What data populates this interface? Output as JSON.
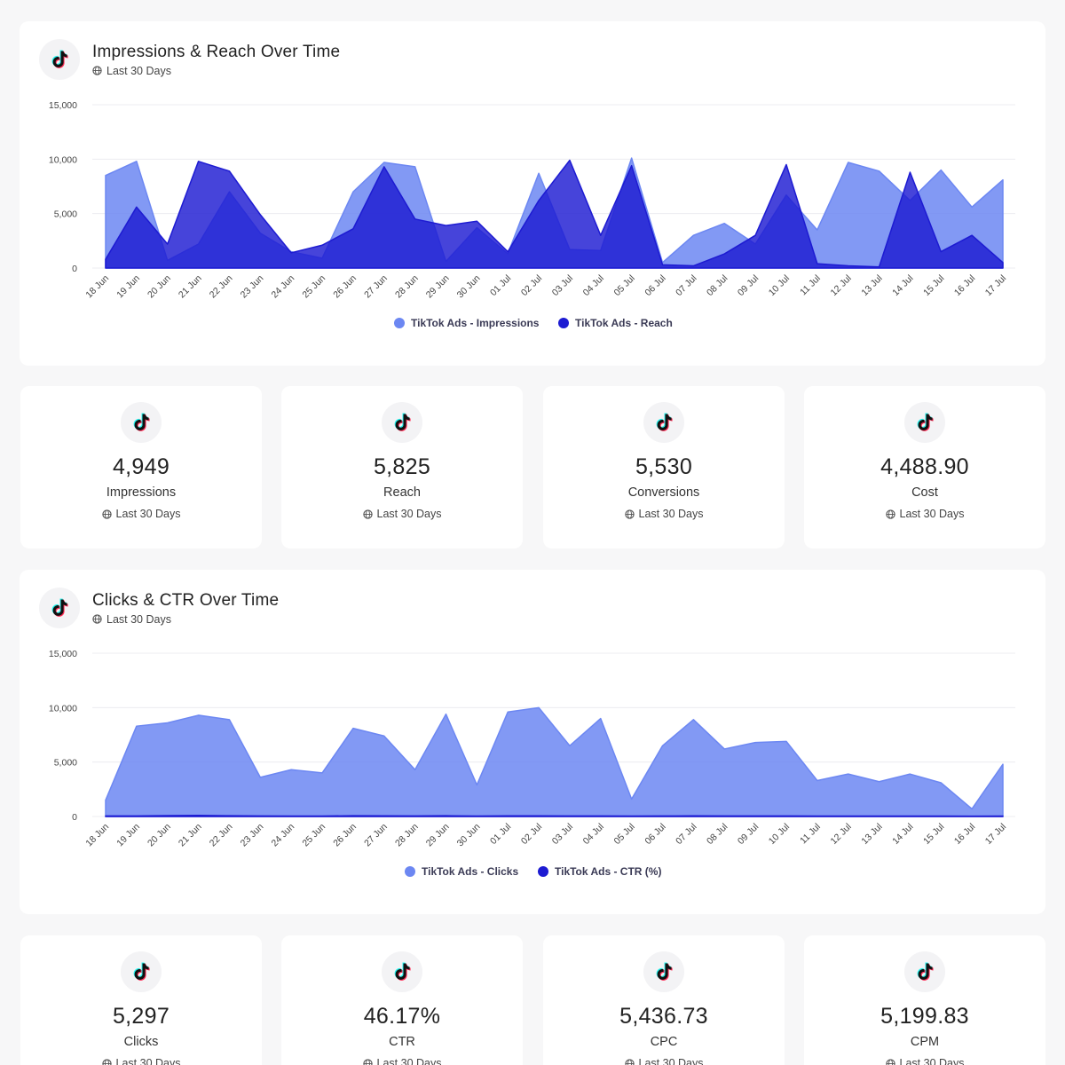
{
  "date_range": "Last 30 Days",
  "colors": {
    "series1": "#6c87f2",
    "series2": "#1d1bd2",
    "grid": "#ececf0"
  },
  "icons": {
    "logo": "tiktok-logo-icon",
    "globe": "globe-icon"
  },
  "charts": [
    {
      "title": "Impressions & Reach Over Time",
      "subtitle": "Last 30 Days",
      "chart_data": {
        "type": "area",
        "title": "Impressions & Reach Over Time",
        "x": [
          "18 Jun",
          "19 Jun",
          "20 Jun",
          "21 Jun",
          "22 Jun",
          "23 Jun",
          "24 Jun",
          "25 Jun",
          "26 Jun",
          "27 Jun",
          "28 Jun",
          "29 Jun",
          "30 Jun",
          "01 Jul",
          "02 Jul",
          "03 Jul",
          "04 Jul",
          "05 Jul",
          "06 Jul",
          "07 Jul",
          "08 Jul",
          "09 Jul",
          "10 Jul",
          "11 Jul",
          "12 Jul",
          "13 Jul",
          "14 Jul",
          "15 Jul",
          "16 Jul",
          "17 Jul"
        ],
        "yticks": [
          0,
          5000,
          10000,
          15000
        ],
        "ytick_labels": [
          "0",
          "5,000",
          "10,000",
          "15,000"
        ],
        "ylim": [
          0,
          15000
        ],
        "grid": true,
        "legend_position": "bottom",
        "series": [
          {
            "name": "TikTok Ads - Impressions",
            "values": [
              8500,
              9800,
              700,
              2200,
              7000,
              3200,
              1500,
              900,
              7000,
              9700,
              9300,
              600,
              3700,
              1300,
              8700,
              1700,
              1600,
              10100,
              500,
              3000,
              4100,
              2200,
              6700,
              3500,
              9700,
              8900,
              6200,
              9000,
              5600,
              8100
            ]
          },
          {
            "name": "TikTok Ads - Reach",
            "values": [
              800,
              5600,
              2200,
              9800,
              8900,
              4900,
              1400,
              2100,
              3600,
              9300,
              4500,
              3900,
              4300,
              1500,
              6200,
              9900,
              3000,
              9400,
              300,
              200,
              1300,
              3000,
              9500,
              400,
              200,
              100,
              8800,
              1500,
              3000,
              500
            ]
          }
        ]
      }
    },
    {
      "title": "Clicks & CTR Over Time",
      "subtitle": "Last 30 Days",
      "chart_data": {
        "type": "area",
        "title": "Clicks & CTR Over Time",
        "x": [
          "18 Jun",
          "19 Jun",
          "20 Jun",
          "21 Jun",
          "22 Jun",
          "23 Jun",
          "24 Jun",
          "25 Jun",
          "26 Jun",
          "27 Jun",
          "28 Jun",
          "29 Jun",
          "30 Jun",
          "01 Jul",
          "02 Jul",
          "03 Jul",
          "04 Jul",
          "05 Jul",
          "06 Jul",
          "07 Jul",
          "08 Jul",
          "09 Jul",
          "10 Jul",
          "11 Jul",
          "12 Jul",
          "13 Jul",
          "14 Jul",
          "15 Jul",
          "16 Jul",
          "17 Jul"
        ],
        "yticks": [
          0,
          5000,
          10000,
          15000
        ],
        "ytick_labels": [
          "0",
          "5,000",
          "10,000",
          "15,000"
        ],
        "ylim": [
          0,
          15000
        ],
        "grid": true,
        "legend_position": "bottom",
        "series": [
          {
            "name": "TikTok Ads - Clicks",
            "values": [
              1500,
              8300,
              8600,
              9300,
              8900,
              3600,
              4300,
              4000,
              8100,
              7400,
              4300,
              9400,
              2900,
              9600,
              10000,
              6500,
              9000,
              1600,
              6500,
              8900,
              6200,
              6800,
              6900,
              3300,
              3900,
              3200,
              3900,
              3100,
              700,
              4800
            ]
          },
          {
            "name": "TikTok Ads - CTR (%)",
            "values": [
              50,
              50,
              80,
              100,
              70,
              50,
              40,
              40,
              70,
              60,
              50,
              70,
              40,
              60,
              60,
              50,
              50,
              40,
              50,
              60,
              50,
              50,
              50,
              40,
              40,
              40,
              40,
              40,
              30,
              40
            ]
          }
        ]
      }
    }
  ],
  "kpis": [
    {
      "value": "4,949",
      "label": "Impressions",
      "sub": "Last 30 Days"
    },
    {
      "value": "5,825",
      "label": "Reach",
      "sub": "Last 30 Days"
    },
    {
      "value": "5,530",
      "label": "Conversions",
      "sub": "Last 30 Days"
    },
    {
      "value": "4,488.90",
      "label": "Cost",
      "sub": "Last 30 Days"
    },
    {
      "value": "5,297",
      "label": "Clicks",
      "sub": "Last 30 Days"
    },
    {
      "value": "46.17%",
      "label": "CTR",
      "sub": "Last 30 Days"
    },
    {
      "value": "5,436.73",
      "label": "CPC",
      "sub": "Last 30 Days"
    },
    {
      "value": "5,199.83",
      "label": "CPM",
      "sub": "Last 30 Days"
    }
  ]
}
